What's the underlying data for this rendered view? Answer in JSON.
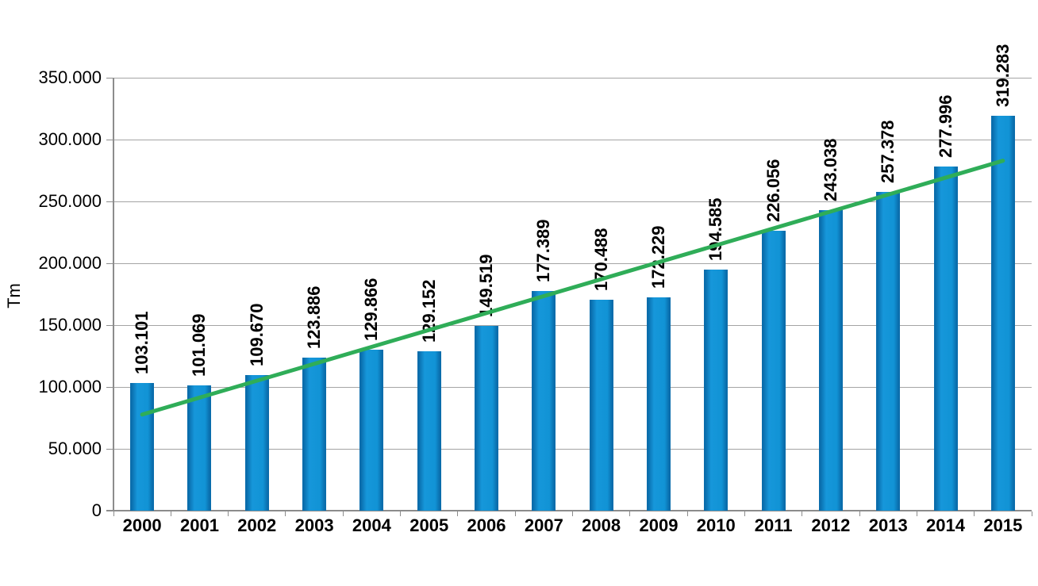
{
  "chart_data": {
    "type": "bar",
    "title": "",
    "xlabel": "",
    "ylabel": "Tm",
    "categories": [
      "2000",
      "2001",
      "2002",
      "2003",
      "2004",
      "2005",
      "2006",
      "2007",
      "2008",
      "2009",
      "2010",
      "2011",
      "2012",
      "2013",
      "2014",
      "2015"
    ],
    "values": [
      103101,
      101069,
      109670,
      123886,
      129866,
      129152,
      149519,
      177389,
      170488,
      172229,
      194585,
      226056,
      243038,
      257378,
      277996,
      319283
    ],
    "value_labels": [
      "103.101",
      "101.069",
      "109.670",
      "123.886",
      "129.866",
      "129.152",
      "149.519",
      "177.389",
      "170.488",
      "172.229",
      "194.585",
      "226.056",
      "243.038",
      "257.378",
      "277.996",
      "319.283"
    ],
    "ylim": [
      0,
      350000
    ],
    "ytick_interval": 50000,
    "ytick_labels": [
      "0",
      "50.000",
      "100.000",
      "150.000",
      "200.000",
      "250.000",
      "300.000",
      "350.000"
    ],
    "grid": true,
    "legend": "none",
    "bar_color": "#1193d5",
    "bar_edge_color": "#0a6dac",
    "trendline": {
      "type": "linear",
      "color": "#2fad58",
      "start_value": 77700,
      "end_value": 282900
    }
  }
}
